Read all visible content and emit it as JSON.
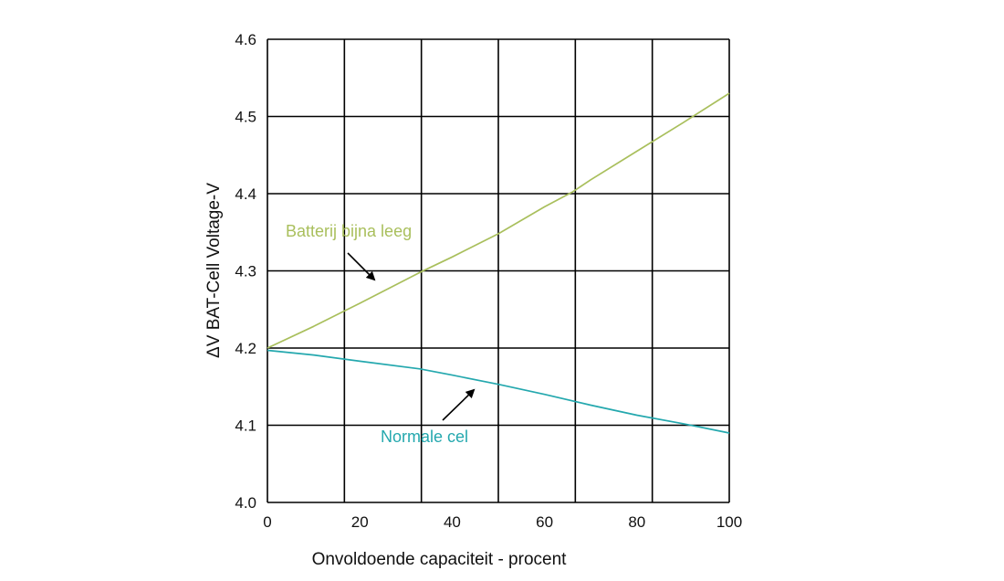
{
  "chart_data": {
    "type": "line",
    "xlabel": "Onvoldoende capaciteit - procent",
    "ylabel": "ΔV BAT-Cell Voltage-V",
    "xlim": [
      0,
      100
    ],
    "ylim": [
      4.0,
      4.6
    ],
    "x_ticks": [
      "0",
      "20",
      "40",
      "60",
      "80",
      "100"
    ],
    "y_ticks": [
      "4.0",
      "4.1",
      "4.2",
      "4.3",
      "4.4",
      "4.5",
      "4.6"
    ],
    "grid": "on",
    "series": [
      {
        "name": "Batterij bijna leeg",
        "color": "#a9bf5c",
        "x": [
          0,
          10,
          20,
          33,
          40,
          50,
          60,
          66,
          70,
          80,
          90,
          100
        ],
        "y": [
          4.2,
          4.228,
          4.258,
          4.298,
          4.318,
          4.348,
          4.383,
          4.402,
          4.418,
          4.455,
          4.492,
          4.53
        ]
      },
      {
        "name": "Normale cel",
        "color": "#24a8ae",
        "x": [
          0,
          10,
          20,
          33,
          40,
          50,
          60,
          70,
          80,
          90,
          100
        ],
        "y": [
          4.197,
          4.191,
          4.183,
          4.173,
          4.165,
          4.153,
          4.14,
          4.126,
          4.113,
          4.102,
          4.09
        ]
      }
    ],
    "annotations": [
      {
        "text": "Batterij bijna leeg",
        "color": "#a9bf5c"
      },
      {
        "text": "Normale cel",
        "color": "#24a8ae"
      }
    ]
  }
}
